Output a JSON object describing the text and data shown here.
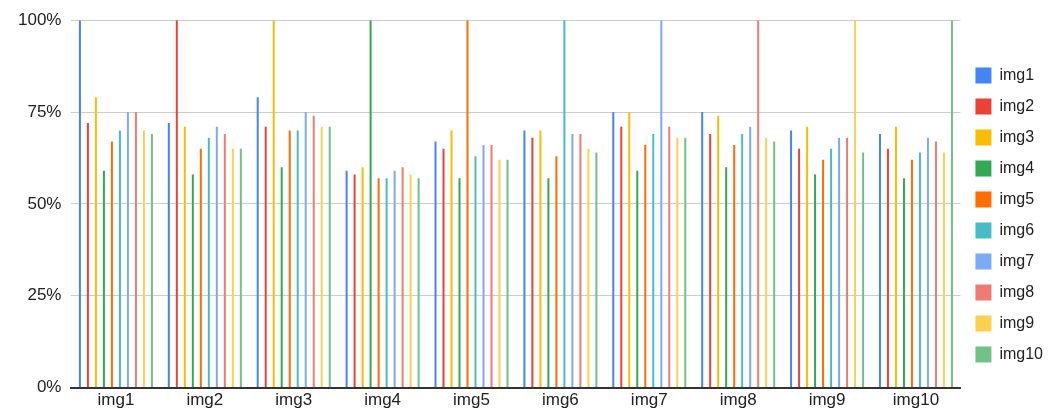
{
  "chart_data": {
    "type": "bar",
    "categories": [
      "img1",
      "img2",
      "img3",
      "img4",
      "img5",
      "img6",
      "img7",
      "img8",
      "img9",
      "img10"
    ],
    "series": [
      {
        "name": "img1",
        "color": "#4285f4",
        "values": [
          100,
          72,
          79,
          59,
          67,
          70,
          75,
          75,
          70,
          69
        ]
      },
      {
        "name": "img2",
        "color": "#ea4335",
        "values": [
          72,
          100,
          71,
          58,
          65,
          68,
          71,
          69,
          65,
          65
        ]
      },
      {
        "name": "img3",
        "color": "#fbbc04",
        "values": [
          79,
          71,
          100,
          60,
          70,
          70,
          75,
          74,
          71,
          71
        ]
      },
      {
        "name": "img4",
        "color": "#34a853",
        "values": [
          59,
          58,
          60,
          100,
          57,
          57,
          59,
          60,
          58,
          57
        ]
      },
      {
        "name": "img5",
        "color": "#ff6d01",
        "values": [
          67,
          65,
          70,
          57,
          100,
          63,
          66,
          66,
          62,
          62
        ]
      },
      {
        "name": "img6",
        "color": "#46bdc6",
        "values": [
          70,
          68,
          70,
          57,
          63,
          100,
          69,
          69,
          65,
          64
        ]
      },
      {
        "name": "img7",
        "color": "#7baaf7",
        "values": [
          75,
          71,
          75,
          59,
          66,
          69,
          100,
          71,
          68,
          68
        ]
      },
      {
        "name": "img8",
        "color": "#f07b72",
        "values": [
          75,
          69,
          74,
          60,
          66,
          69,
          71,
          100,
          68,
          67
        ]
      },
      {
        "name": "img9",
        "color": "#fcd04f",
        "values": [
          70,
          65,
          71,
          58,
          62,
          65,
          68,
          68,
          100,
          64
        ]
      },
      {
        "name": "img10",
        "color": "#71c287",
        "values": [
          69,
          65,
          71,
          57,
          62,
          64,
          68,
          67,
          64,
          100
        ]
      }
    ],
    "ylim": [
      0,
      100
    ],
    "yticks": [
      {
        "value": 0,
        "label": "0%"
      },
      {
        "value": 25,
        "label": "25%"
      },
      {
        "value": 50,
        "label": "50%"
      },
      {
        "value": 75,
        "label": "75%"
      },
      {
        "value": 100,
        "label": "100%"
      }
    ],
    "grid": "y",
    "legend": "right"
  }
}
